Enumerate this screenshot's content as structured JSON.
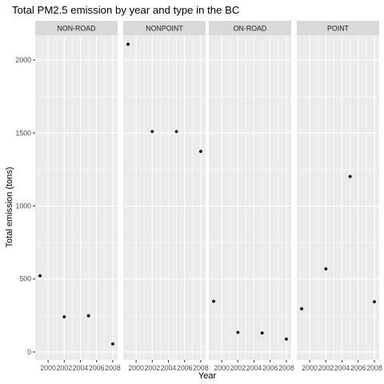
{
  "chart_data": {
    "type": "scatter",
    "title": "Total PM2.5 emission by year and type in the BC",
    "xlabel": "Year",
    "ylabel": "Total emission (tons)",
    "x_ticks": [
      2000,
      2002,
      2004,
      2006,
      2008
    ],
    "x_tick_labels": [
      "2000",
      "2002",
      "2004",
      "2006",
      "2008"
    ],
    "xlim": [
      1998.4,
      2008.6
    ],
    "y_ticks": [
      0,
      500,
      1000,
      1500,
      2000
    ],
    "y_tick_labels": [
      "0",
      "500",
      "1000",
      "1500",
      "2000"
    ],
    "ylim": [
      -55,
      2170
    ],
    "x": [
      1999,
      2002,
      2005,
      2008
    ],
    "panels": [
      {
        "name": "NON-ROAD",
        "values": [
          522,
          241,
          248,
          55
        ]
      },
      {
        "name": "NONPOINT",
        "values": [
          2108,
          1510,
          1510,
          1374
        ]
      },
      {
        "name": "ON-ROAD",
        "values": [
          347,
          134,
          130,
          88
        ]
      },
      {
        "name": "POINT",
        "values": [
          296,
          569,
          1202,
          344
        ]
      }
    ],
    "grid": true,
    "legend": "none"
  }
}
